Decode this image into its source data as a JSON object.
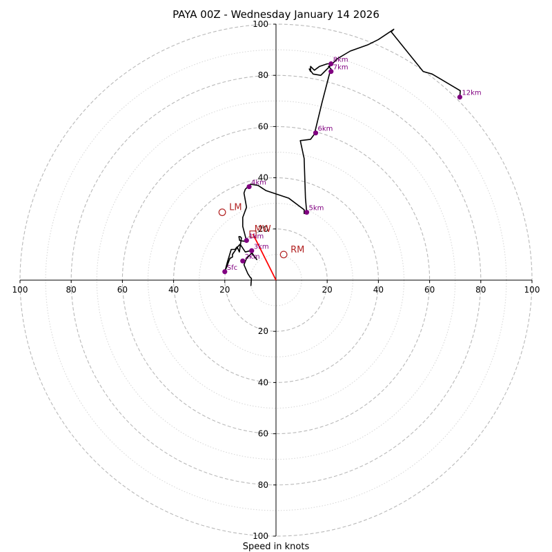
{
  "chart_data": {
    "type": "hodograph",
    "title": "PAYA 00Z - Wednesday January 14 2026",
    "xlabel": "Speed in knots",
    "ring_labels": [
      "20",
      "40",
      "60",
      "80",
      "100"
    ],
    "rings": [
      20,
      40,
      60,
      80,
      100
    ],
    "minor_rings": [
      10,
      30,
      50,
      70,
      90
    ],
    "axis_range": [
      -100,
      100
    ],
    "grid": true,
    "hodograph_trace": {
      "color": "#000000",
      "points": [
        [
          -9.8,
          -2.3
        ],
        [
          -9.6,
          0.7
        ],
        [
          -10.0,
          1.0
        ],
        [
          -11.0,
          2.5
        ],
        [
          -12.5,
          6.0
        ],
        [
          -11.5,
          8.5
        ],
        [
          -9.5,
          10.5
        ],
        [
          -7.5,
          8.0
        ],
        [
          -10.0,
          11.5
        ],
        [
          -12.0,
          11.0
        ],
        [
          -14.0,
          14.0
        ],
        [
          -15.0,
          13.0
        ],
        [
          -17.0,
          10.0
        ],
        [
          -17.0,
          9.0
        ],
        [
          -18.0,
          8.5
        ],
        [
          -20.0,
          3.3
        ],
        [
          -19.0,
          7.0
        ],
        [
          -17.5,
          12.0
        ],
        [
          -16.0,
          12.0
        ],
        [
          -15.2,
          13.0
        ],
        [
          -14.3,
          11.0
        ],
        [
          -13.5,
          16.5
        ],
        [
          -14.0,
          17.0
        ],
        [
          -14.5,
          17.0
        ],
        [
          -14.2,
          15.5
        ],
        [
          -11.5,
          15.0
        ],
        [
          -11.7,
          16.0
        ],
        [
          -13.0,
          21.0
        ],
        [
          -13.0,
          24.5
        ],
        [
          -11.5,
          28.5
        ],
        [
          -12.5,
          34.0
        ],
        [
          -12.0,
          35.5
        ],
        [
          -10.0,
          37.5
        ],
        [
          -7.0,
          37.0
        ],
        [
          -4.0,
          35.0
        ],
        [
          5.0,
          32.0
        ],
        [
          11.0,
          27.5
        ],
        [
          11.0,
          26.0
        ],
        [
          12.0,
          26.5
        ],
        [
          11.5,
          32.0
        ],
        [
          11.0,
          47.5
        ],
        [
          9.5,
          54.5
        ],
        [
          13.5,
          55.0
        ],
        [
          15.0,
          57.0
        ],
        [
          18.0,
          69.5
        ],
        [
          21.0,
          81.0
        ],
        [
          21.5,
          82.5
        ],
        [
          20.5,
          83.5
        ],
        [
          21.5,
          84.0
        ],
        [
          22.0,
          84.5
        ],
        [
          20.0,
          84.5
        ],
        [
          17.0,
          83.5
        ],
        [
          15.0,
          82.0
        ],
        [
          13.5,
          83.5
        ],
        [
          13.5,
          82.0
        ],
        [
          13.5,
          81.5
        ],
        [
          13.0,
          82.5
        ],
        [
          14.5,
          80.5
        ],
        [
          17.5,
          80.0
        ],
        [
          18.5,
          81.0
        ],
        [
          21.0,
          83.5
        ],
        [
          24.0,
          86.5
        ],
        [
          29.0,
          89.5
        ],
        [
          36.0,
          92.0
        ],
        [
          40.0,
          94.0
        ],
        [
          46.0,
          98.0
        ],
        [
          45.0,
          97.0
        ],
        [
          57.5,
          81.5
        ],
        [
          61.0,
          80.5
        ],
        [
          72.0,
          74.0
        ],
        [
          71.8,
          71.5
        ]
      ]
    },
    "height_markers": {
      "color": "#800080",
      "points": [
        {
          "label": "Sfc",
          "u": -20.0,
          "v": 3.3
        },
        {
          "label": "1km",
          "u": -11.5,
          "v": 15.5
        },
        {
          "label": "2km",
          "u": -13.0,
          "v": 7.5
        },
        {
          "label": "3km",
          "u": -9.5,
          "v": 11.5
        },
        {
          "label": "4km",
          "u": -10.5,
          "v": 36.5
        },
        {
          "label": "5km",
          "u": 12.0,
          "v": 26.5
        },
        {
          "label": "6km",
          "u": 15.5,
          "v": 57.5
        },
        {
          "label": "7km",
          "u": 21.5,
          "v": 81.5
        },
        {
          "label": "8km",
          "u": 21.5,
          "v": 84.5
        },
        {
          "label": "12km",
          "u": 71.8,
          "v": 71.5
        }
      ]
    },
    "storm_motion": {
      "color": "#b22222",
      "rm": {
        "label": "RM",
        "u": 3.0,
        "v": 10.0
      },
      "lm": {
        "label": "LM",
        "u": -21.0,
        "v": 26.5
      },
      "mw": {
        "label": "MW",
        "u": -9.0,
        "v": 18.0
      },
      "shear_vector": {
        "color": "#ff0000",
        "from": [
          0,
          0
        ],
        "to": [
          -9.0,
          18.0
        ]
      }
    }
  }
}
